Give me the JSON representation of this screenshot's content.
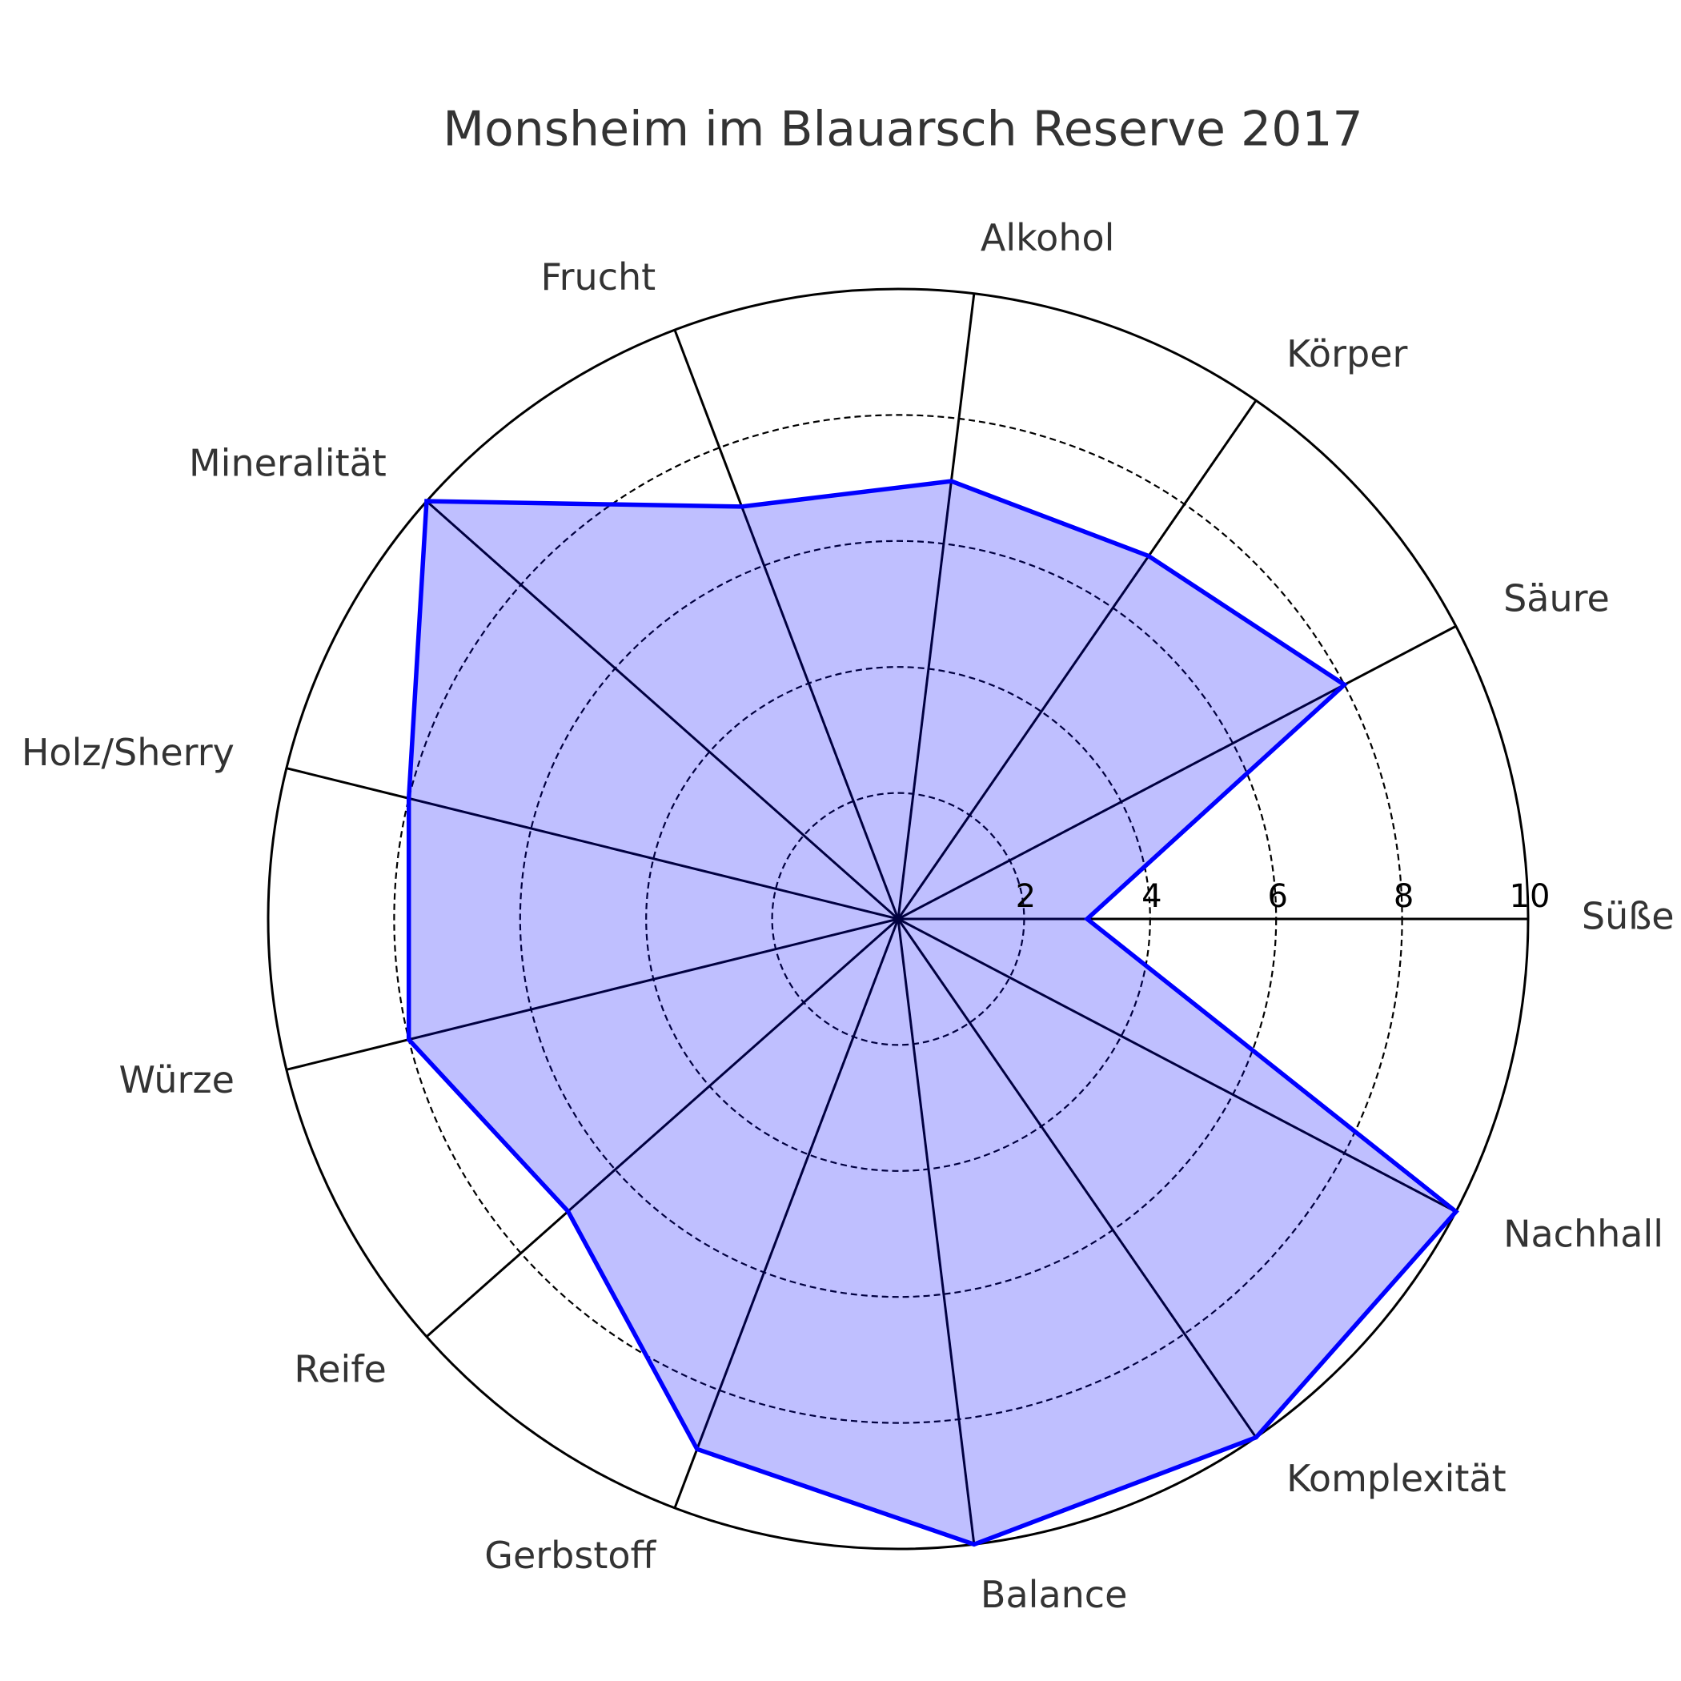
{
  "chart_data": {
    "type": "radar",
    "title": "Monsheim im Blauarsch Reserve 2017",
    "categories": [
      "Süße",
      "Säure",
      "Körper",
      "Alkohol",
      "Frucht",
      "Mineralität",
      "Holz/Sherry",
      "Würze",
      "Reife",
      "Gerbstoff",
      "Balance",
      "Komplexität",
      "Nachhall"
    ],
    "values": [
      3,
      8,
      7,
      7,
      7,
      10,
      8,
      8,
      7,
      9,
      10,
      10,
      10
    ],
    "color": "#0000ff",
    "rlim": [
      0,
      10
    ],
    "rticks": [
      2,
      4,
      6,
      8,
      10
    ],
    "grid": true
  }
}
